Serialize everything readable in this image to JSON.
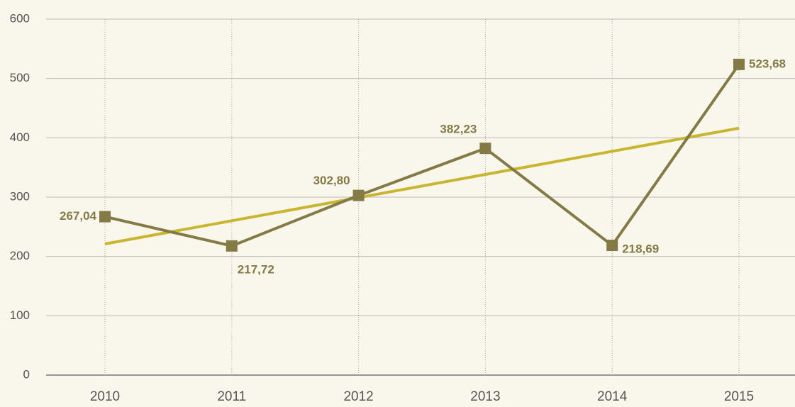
{
  "chart_data": {
    "type": "line",
    "categories": [
      "2010",
      "2011",
      "2012",
      "2013",
      "2014",
      "2015"
    ],
    "series": [
      {
        "color": "#847a46",
        "values": [
          267.04,
          217.72,
          302.8,
          382.23,
          218.69,
          523.68
        ],
        "value_labels": [
          "267,04",
          "217,72",
          "302,80",
          "382,23",
          "218,69",
          "523,68"
        ]
      }
    ],
    "trend": {
      "color": "#c9b530",
      "values": [
        221.14,
        416.24
      ]
    },
    "ylim": [
      0,
      600
    ],
    "yticks": [
      0,
      100,
      200,
      300,
      400,
      500,
      600
    ],
    "grid": true
  }
}
